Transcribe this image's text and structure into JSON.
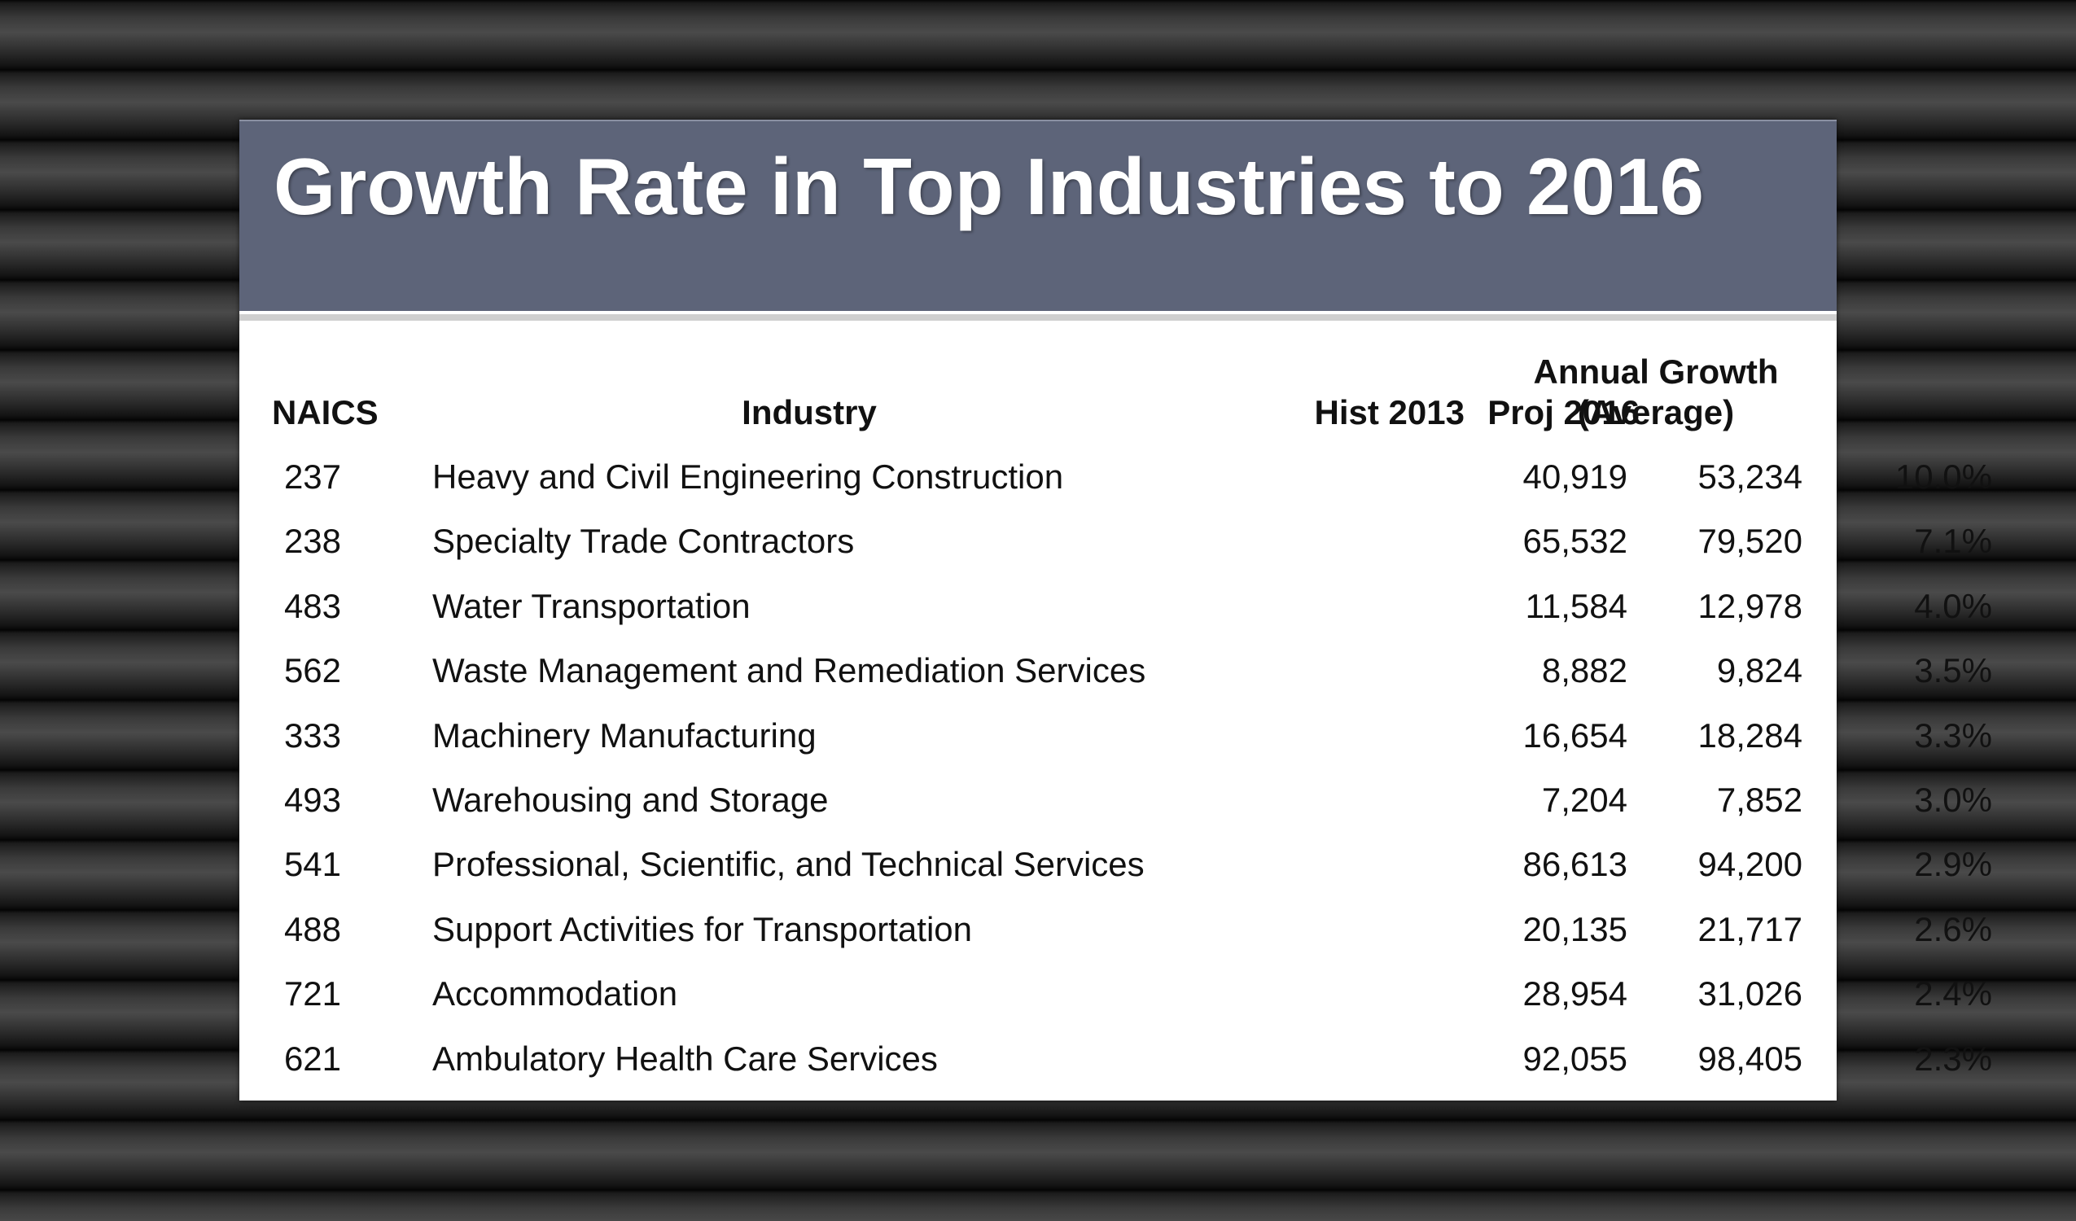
{
  "title": "Growth Rate in Top Industries to 2016",
  "table": {
    "headers": {
      "naics": "NAICS",
      "industry": "Industry",
      "hist": "Hist 2013",
      "proj": "Proj 2016",
      "growth_line1": "Annual Growth",
      "growth_line2": "(Average)"
    },
    "rows": [
      {
        "naics": "237",
        "industry": "Heavy and Civil Engineering Construction",
        "hist": "40,919",
        "proj": "53,234",
        "growth": "10.0%"
      },
      {
        "naics": "238",
        "industry": "Specialty Trade Contractors",
        "hist": "65,532",
        "proj": "79,520",
        "growth": "7.1%"
      },
      {
        "naics": "483",
        "industry": "Water Transportation",
        "hist": "11,584",
        "proj": "12,978",
        "growth": "4.0%"
      },
      {
        "naics": "562",
        "industry": "Waste Management and Remediation Services",
        "hist": "8,882",
        "proj": "9,824",
        "growth": "3.5%"
      },
      {
        "naics": "333",
        "industry": "Machinery Manufacturing",
        "hist": "16,654",
        "proj": "18,284",
        "growth": "3.3%"
      },
      {
        "naics": "493",
        "industry": "Warehousing and Storage",
        "hist": "7,204",
        "proj": "7,852",
        "growth": "3.0%"
      },
      {
        "naics": "541",
        "industry": "Professional, Scientific, and Technical Services",
        "hist": "86,613",
        "proj": "94,200",
        "growth": "2.9%"
      },
      {
        "naics": "488",
        "industry": "Support Activities for Transportation",
        "hist": "20,135",
        "proj": "21,717",
        "growth": "2.6%"
      },
      {
        "naics": "721",
        "industry": "Accommodation",
        "hist": "28,954",
        "proj": "31,026",
        "growth": "2.4%"
      },
      {
        "naics": "621",
        "industry": "Ambulatory Health Care Services",
        "hist": "92,055",
        "proj": "98,405",
        "growth": "2.3%"
      }
    ]
  },
  "colors": {
    "title_band": "#5d6479",
    "title_text": "#ffffff",
    "slide_bg": "#ffffff",
    "rule": "#cfcfcf",
    "text": "#111111"
  }
}
